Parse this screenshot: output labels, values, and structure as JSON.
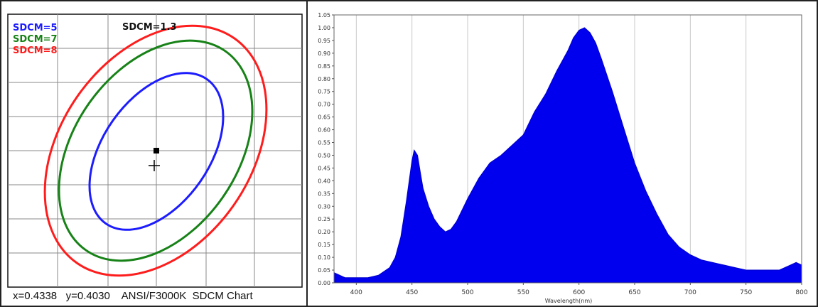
{
  "left_panel": {
    "legend": [
      {
        "label": "SDCM=5",
        "color": "#1c1cff"
      },
      {
        "label": "SDCM=7",
        "color": "#178217"
      },
      {
        "label": "SDCM=8",
        "color": "#ff1c1c"
      }
    ],
    "sdcm_value": "SDCM=1.3",
    "caption": "x=0.4338   y=0.4030    ANSI/F3000K  SDCM Chart"
  },
  "chart_data": [
    {
      "type": "line",
      "title": "SDCM Chart",
      "grid": true,
      "ellipses": [
        {
          "name": "SDCM=5",
          "color": "#1c1cff"
        },
        {
          "name": "SDCM=7",
          "color": "#178217"
        },
        {
          "name": "SDCM=8",
          "color": "#ff1c1c"
        }
      ],
      "points": [
        {
          "x": 0.4338,
          "y": 0.403
        }
      ]
    },
    {
      "type": "area",
      "xlabel": "Wavelength(nm)",
      "ylabel": "",
      "xlim": [
        380,
        800
      ],
      "ylim": [
        0,
        1.05
      ],
      "xticks": [
        400,
        450,
        500,
        550,
        600,
        650,
        700,
        750,
        800
      ],
      "yticks": [
        "0.00",
        "0.05",
        "0.10",
        "0.15",
        "0.20",
        "0.25",
        "0.30",
        "0.35",
        "0.40",
        "0.45",
        "0.50",
        "0.55",
        "0.60",
        "0.65",
        "0.70",
        "0.75",
        "0.80",
        "0.85",
        "0.90",
        "0.95",
        "1.00",
        "1.05"
      ],
      "color": "#0000ee",
      "series": [
        {
          "x": [
            380,
            390,
            400,
            410,
            420,
            430,
            435,
            440,
            445,
            450,
            452,
            455,
            458,
            460,
            465,
            470,
            475,
            480,
            485,
            490,
            500,
            510,
            520,
            530,
            540,
            550,
            560,
            570,
            580,
            590,
            595,
            600,
            605,
            610,
            615,
            620,
            630,
            640,
            650,
            660,
            670,
            680,
            690,
            700,
            710,
            720,
            730,
            740,
            750,
            760,
            770,
            780,
            790,
            795,
            800
          ],
          "values": [
            0.04,
            0.02,
            0.02,
            0.02,
            0.03,
            0.06,
            0.1,
            0.18,
            0.32,
            0.48,
            0.52,
            0.5,
            0.42,
            0.37,
            0.3,
            0.25,
            0.22,
            0.2,
            0.21,
            0.24,
            0.33,
            0.41,
            0.47,
            0.5,
            0.54,
            0.58,
            0.67,
            0.74,
            0.83,
            0.91,
            0.96,
            0.99,
            1.0,
            0.98,
            0.94,
            0.88,
            0.75,
            0.61,
            0.47,
            0.36,
            0.27,
            0.19,
            0.14,
            0.11,
            0.09,
            0.08,
            0.07,
            0.06,
            0.05,
            0.05,
            0.05,
            0.05,
            0.07,
            0.08,
            0.07
          ]
        }
      ]
    }
  ]
}
